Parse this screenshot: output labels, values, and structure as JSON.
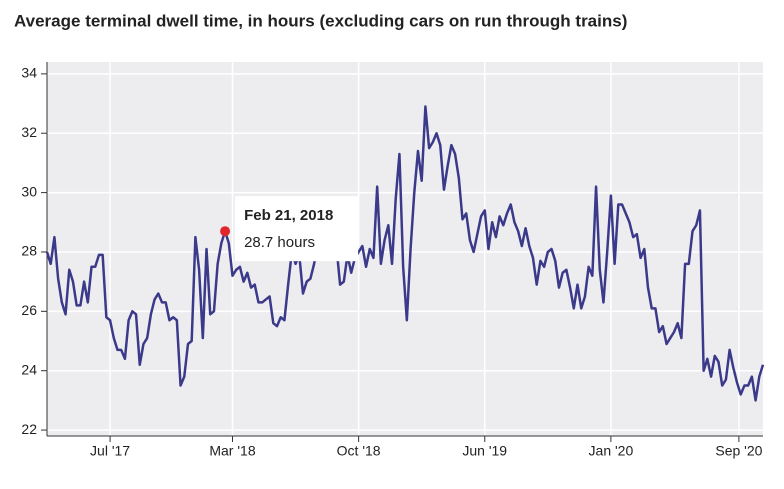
{
  "chart_data": {
    "type": "line",
    "title": "Average terminal dwell time, in hours (excluding cars on run through trains)",
    "x": [
      0,
      1,
      2,
      3,
      4,
      5,
      6,
      7,
      8,
      9,
      10,
      11,
      12,
      13,
      14,
      15,
      16,
      17,
      18,
      19,
      20,
      21,
      22,
      23,
      24,
      25,
      26,
      27,
      28,
      29,
      30,
      31,
      32,
      33,
      34,
      35,
      36,
      37,
      38,
      39,
      40,
      41,
      42,
      43,
      44,
      45,
      46,
      47,
      48,
      49,
      50,
      51,
      52,
      53,
      54,
      55,
      56,
      57,
      58,
      59,
      60,
      61,
      62,
      63,
      64,
      65,
      66,
      67,
      68,
      69,
      70,
      71,
      72,
      73,
      74,
      75,
      76,
      77,
      78,
      79,
      80,
      81,
      82,
      83,
      84,
      85,
      86,
      87,
      88,
      89,
      90,
      91,
      92,
      93,
      94,
      95,
      96,
      97,
      98,
      99,
      100,
      101,
      102,
      103,
      104,
      105,
      106,
      107,
      108,
      109,
      110,
      111,
      112,
      113,
      114,
      115,
      116,
      117,
      118,
      119,
      120,
      121,
      122,
      123,
      124,
      125,
      126,
      127,
      128,
      129,
      130,
      131,
      132,
      133,
      134,
      135,
      136,
      137,
      138,
      139,
      140,
      141,
      142,
      143,
      144,
      145,
      146,
      147,
      148,
      149,
      150,
      151,
      152,
      153,
      154,
      155,
      156,
      157,
      158,
      159,
      160,
      161,
      162,
      163,
      164,
      165,
      166,
      167,
      168,
      169,
      170,
      171,
      172,
      173,
      174,
      175,
      176,
      177,
      178,
      179,
      180,
      181,
      182,
      183,
      184,
      185,
      186,
      187,
      188,
      189,
      190,
      191,
      192,
      193
    ],
    "series": [
      {
        "color": "#3b3a8a",
        "values": [
          28.0,
          27.6,
          28.5,
          27.1,
          26.3,
          25.9,
          27.4,
          27.0,
          26.2,
          26.2,
          27.0,
          26.3,
          27.5,
          27.5,
          27.9,
          27.9,
          25.8,
          25.7,
          25.1,
          24.7,
          24.7,
          24.4,
          25.7,
          26.0,
          25.9,
          24.2,
          24.9,
          25.1,
          25.9,
          26.4,
          26.6,
          26.3,
          26.3,
          25.7,
          25.8,
          25.7,
          23.5,
          23.8,
          24.9,
          25.0,
          28.5,
          27.4,
          25.1,
          28.1,
          25.9,
          26.0,
          27.6,
          28.3,
          28.7,
          28.3,
          27.2,
          27.4,
          27.5,
          27.0,
          27.3,
          26.8,
          26.9,
          26.3,
          26.3,
          26.4,
          26.5,
          25.6,
          25.5,
          25.8,
          25.7,
          26.9,
          28.0,
          27.6,
          27.9,
          26.6,
          27.0,
          27.1,
          27.6,
          28.3,
          28.2,
          28.4,
          28.6,
          28.0,
          28.2,
          26.9,
          27.0,
          27.9,
          27.3,
          27.8,
          28.0,
          28.2,
          27.5,
          28.1,
          27.8,
          30.2,
          27.6,
          28.4,
          28.9,
          27.6,
          29.8,
          31.3,
          27.5,
          25.7,
          28.1,
          30.0,
          31.4,
          30.4,
          32.9,
          31.5,
          31.7,
          32.0,
          31.6,
          30.1,
          30.9,
          31.6,
          31.3,
          30.5,
          29.1,
          29.3,
          28.4,
          28.0,
          28.6,
          29.2,
          29.4,
          28.1,
          29.0,
          28.5,
          29.2,
          28.9,
          29.3,
          29.6,
          29.0,
          28.7,
          28.2,
          28.8,
          28.2,
          27.8,
          26.9,
          27.7,
          27.5,
          28.0,
          28.1,
          27.7,
          26.8,
          27.3,
          27.4,
          26.8,
          26.1,
          26.9,
          26.1,
          26.5,
          27.5,
          27.2,
          30.2,
          27.4,
          26.3,
          28.0,
          29.9,
          27.6,
          29.6,
          29.6,
          29.3,
          29.0,
          28.5,
          28.6,
          27.8,
          28.1,
          26.8,
          26.1,
          26.1,
          25.3,
          25.5,
          24.9,
          25.1,
          25.3,
          25.6,
          25.1,
          27.6,
          27.6,
          28.7,
          28.9,
          29.4,
          24.0,
          24.4,
          23.8,
          24.5,
          24.3,
          23.5,
          23.7,
          24.7,
          24.1,
          23.6,
          23.2,
          23.5,
          23.5,
          23.8,
          23.0,
          23.8,
          24.2
        ]
      }
    ],
    "xlim": [
      0,
      193
    ],
    "xticks": [
      {
        "value": 17,
        "label": "Jul '17"
      },
      {
        "value": 50,
        "label": "Mar '18"
      },
      {
        "value": 84,
        "label": "Oct '18"
      },
      {
        "value": 118,
        "label": "Jun '19"
      },
      {
        "value": 152,
        "label": "Jan '20"
      },
      {
        "value": 186.5,
        "label": "Sep '20"
      }
    ],
    "ylim": [
      21.8,
      34.4
    ],
    "yticks": [
      22,
      24,
      26,
      28,
      30,
      32,
      34
    ],
    "grid": true,
    "tooltip": {
      "date": "Feb 21, 2018",
      "label": "28.7 hours",
      "x": 48,
      "value": 28.7,
      "color": "#e0262b"
    }
  }
}
